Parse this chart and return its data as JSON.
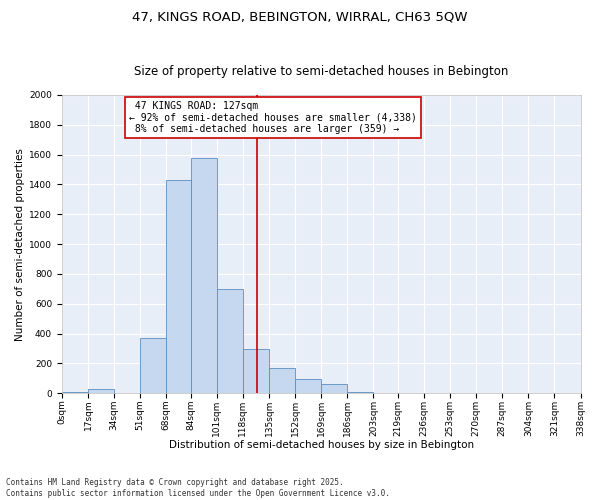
{
  "title1": "47, KINGS ROAD, BEBINGTON, WIRRAL, CH63 5QW",
  "title2": "Size of property relative to semi-detached houses in Bebington",
  "xlabel": "Distribution of semi-detached houses by size in Bebington",
  "ylabel": "Number of semi-detached properties",
  "property_size": 127,
  "property_label": "47 KINGS ROAD: 127sqm",
  "pct_smaller": 92,
  "count_smaller": 4338,
  "pct_larger": 8,
  "count_larger": 359,
  "bin_edges": [
    0,
    17,
    34,
    51,
    68,
    84,
    101,
    118,
    135,
    152,
    169,
    186,
    203,
    219,
    236,
    253,
    270,
    287,
    304,
    321,
    338
  ],
  "bar_heights": [
    5,
    30,
    0,
    370,
    1430,
    1580,
    700,
    295,
    170,
    95,
    60,
    10,
    0,
    0,
    0,
    0,
    0,
    0,
    0,
    0
  ],
  "bar_color": "#c5d8f0",
  "bar_edge_color": "#5b8ec4",
  "vline_color": "#cc0000",
  "annotation_box_color": "#cc0000",
  "background_color": "#e8eef8",
  "grid_color": "#ffffff",
  "ylim": [
    0,
    2000
  ],
  "yticks": [
    0,
    200,
    400,
    600,
    800,
    1000,
    1200,
    1400,
    1600,
    1800,
    2000
  ],
  "footnote": "Contains HM Land Registry data © Crown copyright and database right 2025.\nContains public sector information licensed under the Open Government Licence v3.0.",
  "title1_fontsize": 9.5,
  "title2_fontsize": 8.5,
  "xlabel_fontsize": 7.5,
  "ylabel_fontsize": 7.5,
  "tick_fontsize": 6.5,
  "annot_fontsize": 7,
  "footnote_fontsize": 5.5
}
